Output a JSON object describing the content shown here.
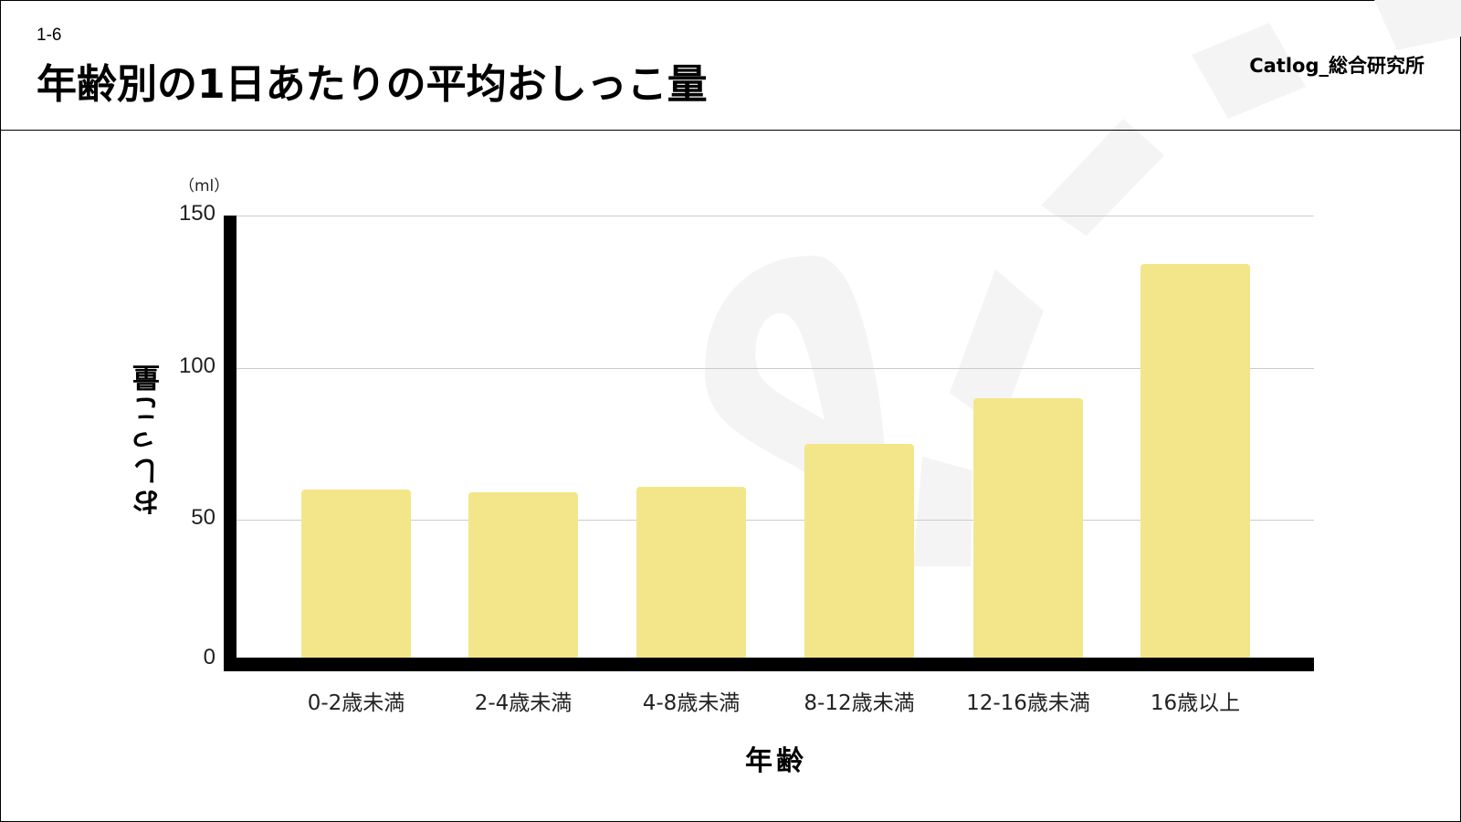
{
  "header": {
    "section_number": "1-6",
    "title": "年齢別の1日あたりの平均おしっこ量",
    "logo": "Catlog_総合研究所"
  },
  "colors": {
    "bar": "#f3e68a",
    "axis": "#000000",
    "grid": "#cccccc",
    "watermark": "#f4f4f4"
  },
  "chart_data": {
    "type": "bar",
    "title": "年齢別の1日あたりの平均おしっこ量",
    "categories": [
      "0-2歳未満",
      "2-4歳未満",
      "4-8歳未満",
      "8-12歳未満",
      "12-16歳未満",
      "16歳以上"
    ],
    "values": [
      60,
      59,
      61,
      75,
      90,
      134
    ],
    "xlabel": "年齢",
    "ylabel": "おしっこ量",
    "unit": "（ml）",
    "ylim": [
      0,
      150
    ],
    "yticks": [
      0,
      50,
      100,
      150
    ],
    "grid": true,
    "legend": null
  }
}
